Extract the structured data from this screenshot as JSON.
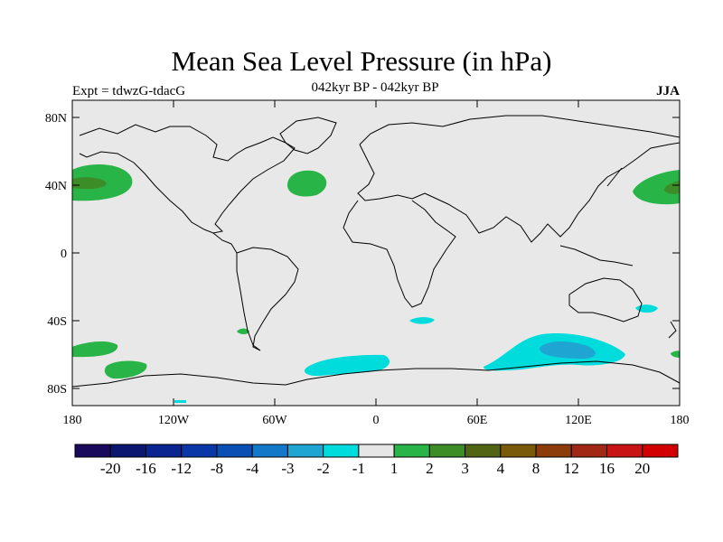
{
  "title": "Mean Sea Level Pressure (in hPa)",
  "left_label": "Expt = tdwzG-tdacG",
  "center_label": "042kyr BP - 042kyr BP",
  "right_label": "JJA",
  "y_ticks": [
    "80N",
    "40N",
    "0",
    "40S",
    "80S"
  ],
  "x_ticks": [
    "180",
    "120W",
    "60W",
    "0",
    "60E",
    "120E",
    "180"
  ],
  "colorbar": {
    "colors": [
      "#1a0a5c",
      "#0a1670",
      "#0a2590",
      "#0a37a8",
      "#0a4fb4",
      "#1478c8",
      "#1ea5d2",
      "#00dcdc",
      "#e6e6e6",
      "#28b446",
      "#3c8c28",
      "#506414",
      "#785a0a",
      "#8c3c0a",
      "#a02814",
      "#c81414",
      "#d20000"
    ],
    "labels": [
      "-20",
      "-16",
      "-12",
      "-8",
      "-4",
      "-3",
      "-2",
      "-1",
      "1",
      "2",
      "3",
      "4",
      "8",
      "12",
      "16",
      "20"
    ]
  },
  "colors": {
    "background": "#e8e8e8",
    "coast": "#000000"
  }
}
